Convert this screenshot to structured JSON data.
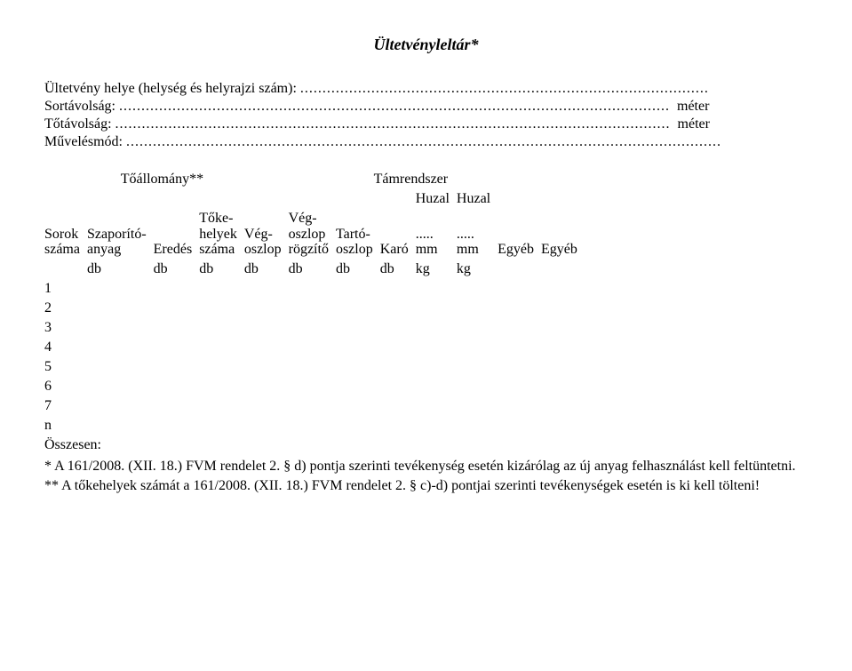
{
  "title": "Ültetvényleltár*",
  "fields": {
    "location_label": "Ültetvény helye (helység és helyrajzi szám):",
    "location_dots": "............................................................................................",
    "sortavolsag_label": "Sortávolság:",
    "sortavolsag_dots": "............................................................................................................................",
    "totavolsag_label": "Tőtávolság:",
    "totavolsag_dots": ".............................................................................................................................",
    "muvelesmod_label": "Művelésmód:",
    "muvelesmod_dots": "......................................................................................................................................",
    "meter": "méter"
  },
  "table": {
    "group_left": "Tőállomány**",
    "group_right": "Támrendszer",
    "huzal": "Huzal",
    "headers": {
      "sorok_szama_1": "Sorok",
      "sorok_szama_2": "száma",
      "szaporito_1": "Szaporító-",
      "szaporito_2": "anyag",
      "eredes": "Eredés",
      "tokehelyek_1": "Tőke-",
      "tokehelyek_2": "helyek",
      "tokehelyek_3": "száma",
      "vegoszlop_1": "Vég-",
      "vegoszlop_2": "oszlop",
      "vegoszlop_rog_1": "Vég-",
      "vegoszlop_rog_2": "oszlop",
      "vegoszlop_rog_3": "rögzítő",
      "tartooszlop_1": "Tartó-",
      "tartooszlop_2": "oszlop",
      "karo": "Karó",
      "dots": ".....",
      "mm": "mm",
      "egyeb": "Egyéb"
    },
    "unit_db": "db",
    "unit_kg": "kg",
    "rows": [
      "1",
      "2",
      "3",
      "4",
      "5",
      "6",
      "7",
      "n"
    ],
    "total_label": "Összesen:"
  },
  "footnotes": {
    "f1": "* A 161/2008. (XII. 18.) FVM rendelet 2. § d) pontja szerinti tevékenység esetén kizárólag az új anyag felhasználást kell feltüntetni.",
    "f2": "** A tőkehelyek számát a 161/2008. (XII. 18.) FVM rendelet 2. § c)-d) pontjai szerinti tevékenységek esetén is ki kell tölteni!"
  }
}
